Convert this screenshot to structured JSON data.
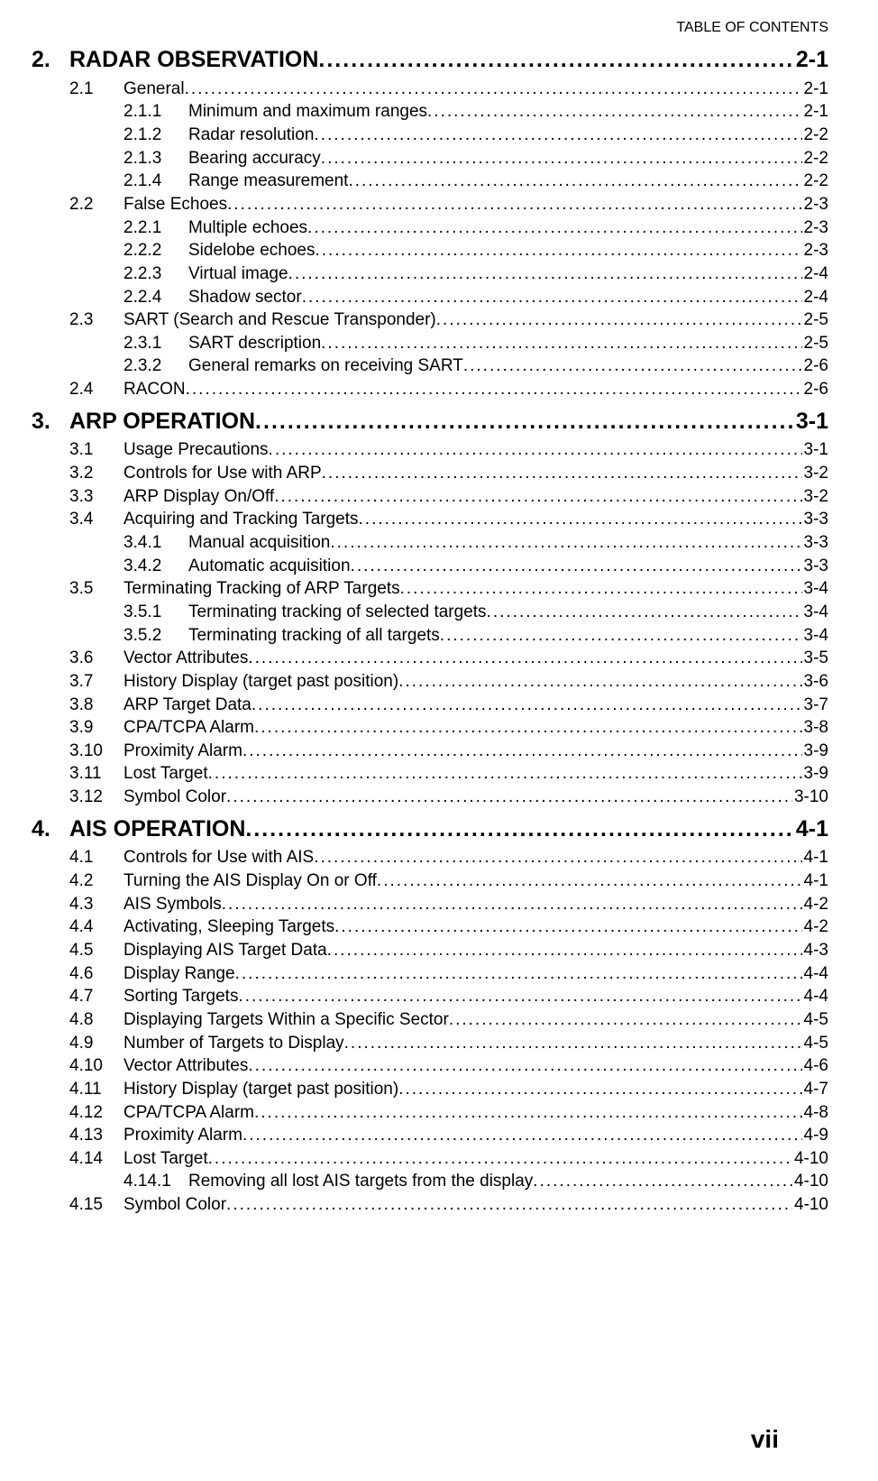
{
  "header": {
    "label": "TABLE OF CONTENTS"
  },
  "footer": {
    "page_number": "vii"
  },
  "toc": [
    {
      "level": 0,
      "num": "2.",
      "text": "RADAR OBSERVATION",
      "page": "2-1"
    },
    {
      "level": 1,
      "num": "2.1",
      "text": "General",
      "page": "2-1"
    },
    {
      "level": 2,
      "num": "2.1.1",
      "text": "Minimum and maximum ranges ",
      "page": "2-1"
    },
    {
      "level": 2,
      "num": "2.1.2",
      "text": "Radar resolution ",
      "page": "2-2"
    },
    {
      "level": 2,
      "num": "2.1.3",
      "text": "Bearing accuracy ",
      "page": "2-2"
    },
    {
      "level": 2,
      "num": "2.1.4",
      "text": "Range measurement ",
      "page": "2-2"
    },
    {
      "level": 1,
      "num": "2.2",
      "text": "False Echoes",
      "page": "2-3"
    },
    {
      "level": 2,
      "num": "2.2.1",
      "text": "Multiple echoes ",
      "page": "2-3"
    },
    {
      "level": 2,
      "num": "2.2.2",
      "text": "Sidelobe echoes ",
      "page": "2-3"
    },
    {
      "level": 2,
      "num": "2.2.3",
      "text": "Virtual image ",
      "page": "2-4"
    },
    {
      "level": 2,
      "num": "2.2.4",
      "text": "Shadow sector ",
      "page": "2-4"
    },
    {
      "level": 1,
      "num": "2.3",
      "text": "SART (Search and Rescue Transponder)",
      "page": "2-5"
    },
    {
      "level": 2,
      "num": "2.3.1",
      "text": "SART description",
      "page": "2-5"
    },
    {
      "level": 2,
      "num": "2.3.2",
      "text": "General remarks on receiving SART ",
      "page": "2-6"
    },
    {
      "level": 1,
      "num": "2.4",
      "text": "RACON",
      "page": "2-6"
    },
    {
      "level": 0,
      "num": "3.",
      "text": "ARP OPERATION ",
      "page": "3-1"
    },
    {
      "level": 1,
      "num": "3.1",
      "text": "Usage Precautions ",
      "page": "3-1"
    },
    {
      "level": 1,
      "num": "3.2",
      "text": "Controls for Use with ARP",
      "page": "3-2"
    },
    {
      "level": 1,
      "num": "3.3",
      "text": "ARP Display On/Off",
      "page": "3-2"
    },
    {
      "level": 1,
      "num": "3.4",
      "text": "Acquiring and Tracking Targets",
      "page": "3-3"
    },
    {
      "level": 2,
      "num": "3.4.1",
      "text": "Manual acquisition ",
      "page": "3-3"
    },
    {
      "level": 2,
      "num": "3.4.2",
      "text": "Automatic acquisition ",
      "page": "3-3"
    },
    {
      "level": 1,
      "num": "3.5",
      "text": "Terminating Tracking of ARP Targets ",
      "page": "3-4"
    },
    {
      "level": 2,
      "num": "3.5.1",
      "text": "Terminating tracking of selected targets ",
      "page": "3-4"
    },
    {
      "level": 2,
      "num": "3.5.2",
      "text": "Terminating tracking of all targets ",
      "page": "3-4"
    },
    {
      "level": 1,
      "num": "3.6",
      "text": "Vector Attributes ",
      "page": "3-5"
    },
    {
      "level": 1,
      "num": "3.7",
      "text": "History Display (target past position)",
      "page": "3-6"
    },
    {
      "level": 1,
      "num": "3.8",
      "text": "ARP Target Data ",
      "page": "3-7"
    },
    {
      "level": 1,
      "num": "3.9",
      "text": "CPA/TCPA Alarm ",
      "page": "3-8"
    },
    {
      "level": 1,
      "num": "3.10",
      "text": "Proximity Alarm ",
      "page": "3-9"
    },
    {
      "level": 1,
      "num": "3.11",
      "text": "Lost Target ",
      "page": "3-9"
    },
    {
      "level": 1,
      "num": "3.12",
      "text": "Symbol Color",
      "page": "3-10"
    },
    {
      "level": 0,
      "num": "4.",
      "text": "AIS OPERATION",
      "page": "4-1"
    },
    {
      "level": 1,
      "num": "4.1",
      "text": " Controls for Use with AIS ",
      "page": "4-1"
    },
    {
      "level": 1,
      "num": "4.2",
      "text": "Turning the AIS Display On or Off ",
      "page": "4-1"
    },
    {
      "level": 1,
      "num": "4.3",
      "text": "AIS Symbols ",
      "page": "4-2"
    },
    {
      "level": 1,
      "num": "4.4",
      "text": "Activating, Sleeping Targets",
      "page": "4-2"
    },
    {
      "level": 1,
      "num": "4.5",
      "text": "Displaying AIS Target Data ",
      "page": "4-3"
    },
    {
      "level": 1,
      "num": "4.6",
      "text": "Display Range ",
      "page": "4-4"
    },
    {
      "level": 1,
      "num": "4.7",
      "text": "Sorting Targets ",
      "page": "4-4"
    },
    {
      "level": 1,
      "num": "4.8",
      "text": "Displaying Targets Within a Specific Sector",
      "page": "4-5"
    },
    {
      "level": 1,
      "num": "4.9",
      "text": "Number of Targets to Display",
      "page": "4-5"
    },
    {
      "level": 1,
      "num": "4.10",
      "text": "Vector Attributes ",
      "page": "4-6"
    },
    {
      "level": 1,
      "num": "4.11",
      "text": "History Display (target past position)",
      "page": "4-7"
    },
    {
      "level": 1,
      "num": "4.12",
      "text": "CPA/TCPA Alarm ",
      "page": "4-8"
    },
    {
      "level": 1,
      "num": "4.13",
      "text": "Proximity Alarm ",
      "page": "4-9"
    },
    {
      "level": 1,
      "num": "4.14",
      "text": "Lost Target ",
      "page": "4-10"
    },
    {
      "level": 2,
      "num": "4.14.1",
      "text": "Removing all lost AIS targets from the display ",
      "page": "4-10"
    },
    {
      "level": 1,
      "num": "4.15",
      "text": "Symbol Color",
      "page": "4-10"
    }
  ]
}
